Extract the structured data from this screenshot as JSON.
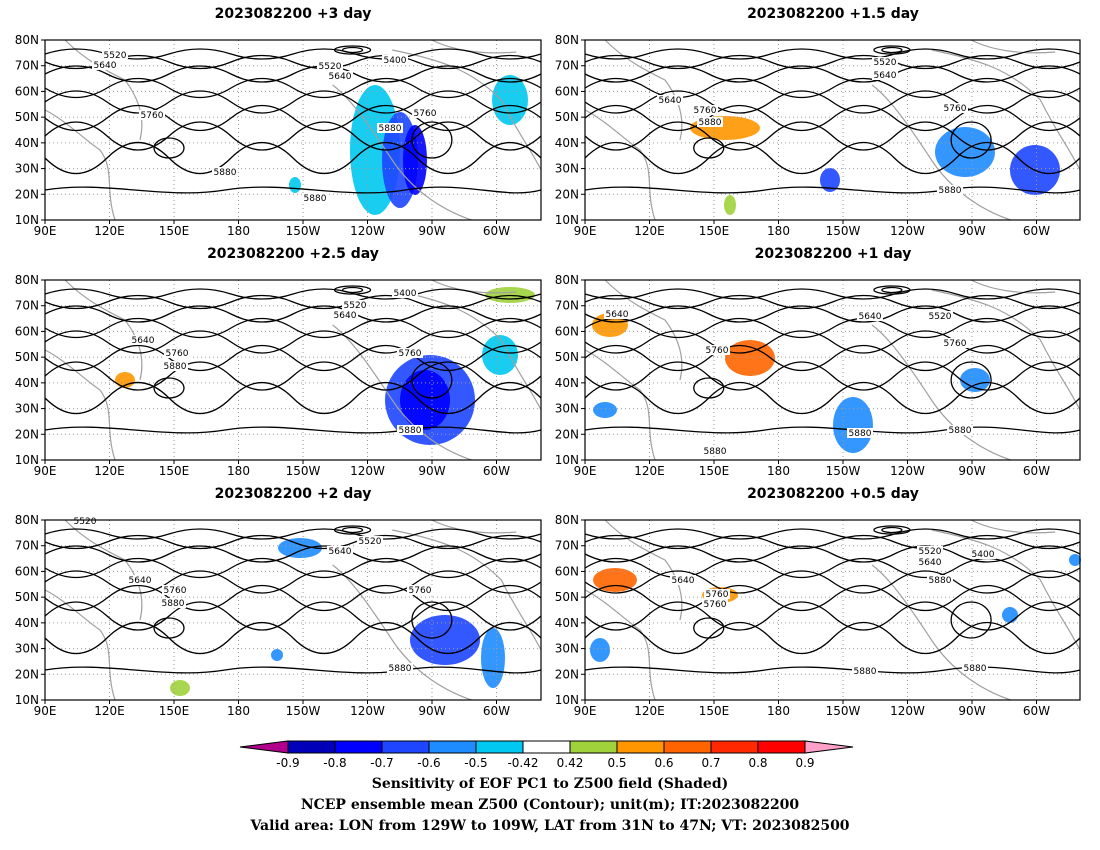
{
  "panels": [
    {
      "title": "2023082200  +3 day",
      "contour_labels": [
        "5520",
        "5640",
        "5520",
        "5640",
        "5400",
        "5760",
        "5760",
        "5880",
        "5880",
        "5880"
      ]
    },
    {
      "title": "2023082200  +1.5 day",
      "contour_labels": [
        "5520",
        "5640",
        "5640",
        "5760",
        "5880",
        "5760",
        "5880"
      ]
    },
    {
      "title": "2023082200  +2.5 day",
      "contour_labels": [
        "5400",
        "5520",
        "5640",
        "5640",
        "5760",
        "5880",
        "5760",
        "5880"
      ]
    },
    {
      "title": "2023082200  +1 day",
      "contour_labels": [
        "5640",
        "5640",
        "5520",
        "5760",
        "5760",
        "5880",
        "5880",
        "5880"
      ]
    },
    {
      "title": "2023082200  +2 day",
      "contour_labels": [
        "5520",
        "5520",
        "5640",
        "5640",
        "5760",
        "5880",
        "5760",
        "5880"
      ]
    },
    {
      "title": "2023082200  +0.5 day",
      "contour_labels": [
        "5520",
        "5400",
        "5640",
        "5640",
        "5760",
        "5760",
        "5880",
        "5880",
        "5880"
      ]
    }
  ],
  "axes": {
    "lat_ticks": [
      "80N",
      "70N",
      "60N",
      "50N",
      "40N",
      "30N",
      "20N",
      "10N"
    ],
    "lon_ticks": [
      "90E",
      "120E",
      "150E",
      "180",
      "150W",
      "120W",
      "90W",
      "60W"
    ]
  },
  "colorbar": {
    "levels": [
      "-0.9",
      "-0.8",
      "-0.7",
      "-0.6",
      "-0.5",
      "-0.42",
      "0.42",
      "0.5",
      "0.6",
      "0.7",
      "0.8",
      "0.9"
    ],
    "colors": [
      "#b0008c",
      "#0000b8",
      "#0000ff",
      "#1e46ff",
      "#1e8cff",
      "#00c8f0",
      "#ffffff",
      "#a0d23c",
      "#ff9600",
      "#ff6400",
      "#ff2800",
      "#ff0000",
      "#ffa0c8"
    ]
  },
  "footer": [
    "Sensitivity of EOF PC1 to Z500 field (Shaded)",
    "NCEP ensemble mean Z500 (Contour); unit(m); IT:2023082200",
    "Valid area: LON from 129W to 109W, LAT from 31N to 47N; VT: 2023082500"
  ],
  "colors": {
    "contour": "#000000",
    "coast": "#a0a0a0",
    "grid": "#9a9a9a"
  }
}
